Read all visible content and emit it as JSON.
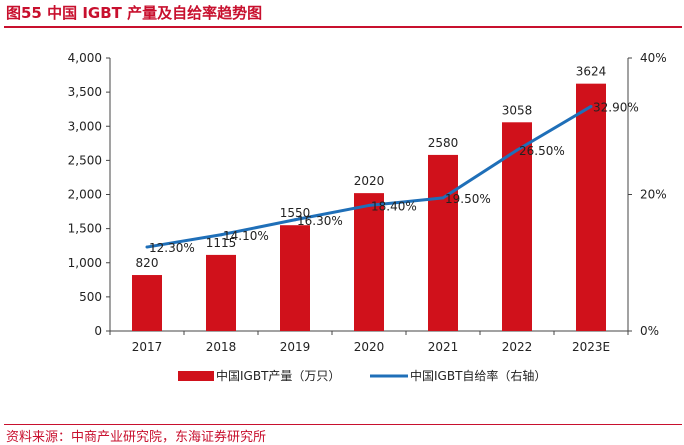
{
  "figure_title": "图55 中国 IGBT 产量及自给率趋势图",
  "source": "资料来源：中商产业研究院，东海证券研究所",
  "colors": {
    "bar": "#d0111b",
    "line": "#1f6fb8",
    "accent": "#c8102e",
    "axis": "#444444"
  },
  "chart_data": {
    "type": "bar",
    "categories": [
      "2017",
      "2018",
      "2019",
      "2020",
      "2021",
      "2022",
      "2023E"
    ],
    "series": [
      {
        "name": "中国IGBT产量（万只）",
        "type": "bar",
        "axis": "left",
        "values": [
          820,
          1115,
          1550,
          2020,
          2580,
          3058,
          3624
        ],
        "labels": [
          "820",
          "1115",
          "1550",
          "2020",
          "2580",
          "3058",
          "3624"
        ]
      },
      {
        "name": "中国IGBT自给率（右轴）",
        "type": "line",
        "axis": "right",
        "values": [
          12.3,
          14.1,
          16.3,
          18.4,
          19.5,
          26.5,
          32.9
        ],
        "labels": [
          "12.30%",
          "14.10%",
          "16.30%",
          "18.40%",
          "19.50%",
          "26.50%",
          "32.90%"
        ]
      }
    ],
    "y_left": {
      "min": 0,
      "max": 4000,
      "ticks": [
        "0",
        "500",
        "1,000",
        "1,500",
        "2,000",
        "2,500",
        "3,000",
        "3,500",
        "4,000"
      ]
    },
    "y_right": {
      "min": 0,
      "max": 40,
      "ticks": [
        "0%",
        "20%",
        "40%"
      ]
    },
    "legend_position": "bottom-center",
    "grid": false
  }
}
